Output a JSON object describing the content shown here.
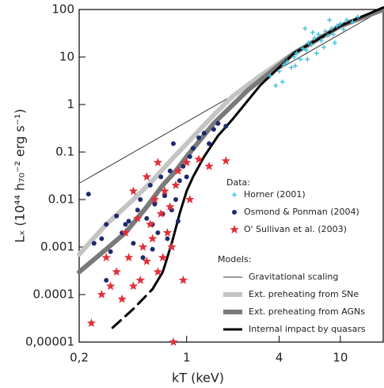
{
  "chart_data": {
    "type": "scatter",
    "ylabel": "Lₓ (10⁴⁴ h₇₀⁻² erg s⁻¹)",
    "xlabel": "kT (keV)",
    "xscale": "log",
    "yscale": "log",
    "xlim": [
      0.2,
      19
    ],
    "ylim": [
      1e-05,
      100
    ],
    "xticks": [
      {
        "value": 0.2,
        "label": "0,2"
      },
      1,
      4,
      10
    ],
    "yticks": [
      {
        "value": 1e-05,
        "label": "0,00001"
      },
      0.0001,
      0.001,
      0.01,
      0.1,
      1,
      10,
      100
    ],
    "data_legend_title": "Data:",
    "model_legend_title": "Models:",
    "series": [
      {
        "name": "Horner (2001)",
        "kind": "scatter",
        "marker": "cross",
        "color": "#4fc3dc",
        "x": [
          3.5,
          4,
          4.2,
          4.5,
          4.8,
          5,
          5.2,
          5.5,
          5.7,
          6,
          6.2,
          6.5,
          6.8,
          7,
          7.2,
          7.5,
          8,
          8.3,
          8.8,
          9,
          9.5,
          10,
          10.5,
          11,
          12,
          13,
          4.3,
          5.1,
          6.1,
          3.8,
          7.8,
          9.2,
          5.9,
          6.6,
          8.5
        ],
        "values": [
          4,
          5,
          3,
          8,
          6,
          10,
          12,
          9,
          15,
          14,
          20,
          18,
          25,
          12,
          30,
          22,
          35,
          28,
          40,
          30,
          45,
          50,
          38,
          60,
          55,
          70,
          7,
          6.5,
          9,
          2.5,
          16,
          20,
          40,
          33,
          60
        ]
      },
      {
        "name": "Osmond & Ponman (2004)",
        "kind": "scatter",
        "marker": "circle",
        "color": "#1f2a6b",
        "x": [
          0.23,
          0.25,
          0.28,
          0.3,
          0.32,
          0.35,
          0.38,
          0.4,
          0.42,
          0.45,
          0.48,
          0.5,
          0.52,
          0.55,
          0.58,
          0.6,
          0.62,
          0.65,
          0.68,
          0.7,
          0.72,
          0.75,
          0.78,
          0.8,
          0.82,
          0.85,
          0.9,
          0.95,
          1.0,
          1.05,
          1.1,
          1.2,
          1.3,
          1.4,
          1.5,
          1.6,
          1.8,
          0.3,
          0.6,
          0.88
        ],
        "values": [
          0.013,
          0.0012,
          0.0015,
          0.003,
          0.0008,
          0.0045,
          0.002,
          0.003,
          0.0035,
          0.0012,
          0.006,
          0.01,
          0.0006,
          0.004,
          0.02,
          0.003,
          0.008,
          0.002,
          0.03,
          0.005,
          0.012,
          0.0015,
          0.04,
          0.006,
          0.15,
          0.01,
          0.025,
          0.05,
          0.03,
          0.08,
          0.12,
          0.2,
          0.25,
          0.15,
          0.3,
          0.4,
          0.35,
          0.0002,
          0.0009,
          0.0035
        ]
      },
      {
        "name": "O' Sullivan et al. (2003)",
        "kind": "scatter",
        "marker": "star",
        "color": "#e0303a",
        "x": [
          0.24,
          0.28,
          0.3,
          0.32,
          0.35,
          0.38,
          0.4,
          0.42,
          0.45,
          0.48,
          0.5,
          0.52,
          0.55,
          0.58,
          0.6,
          0.62,
          0.65,
          0.68,
          0.7,
          0.72,
          0.75,
          0.78,
          0.8,
          0.82,
          0.85,
          0.88,
          0.95,
          1.0,
          1.05,
          1.2,
          1.4,
          1.8,
          0.55,
          0.45,
          0.65
        ],
        "values": [
          2.5e-05,
          0.0001,
          0.0006,
          0.00015,
          0.0003,
          8e-05,
          0.002,
          0.0006,
          0.00015,
          0.004,
          0.0002,
          0.001,
          0.0005,
          0.003,
          0.0015,
          0.01,
          0.0003,
          0.005,
          0.0006,
          0.015,
          0.002,
          0.007,
          0.001,
          1e-05,
          0.02,
          0.04,
          0.0002,
          0.06,
          0.01,
          0.07,
          0.05,
          0.065,
          0.03,
          0.015,
          0.06
        ]
      },
      {
        "name": "Gravitational scaling",
        "kind": "line",
        "color": "#333333",
        "width": 1,
        "x": [
          0.2,
          19
        ],
        "values": [
          0.022,
          100
        ]
      },
      {
        "name": "Ext. preheating from SNe",
        "kind": "line",
        "color": "#c4c4c4",
        "width": 6,
        "x": [
          0.2,
          0.3,
          0.45,
          0.6,
          0.8,
          1,
          1.5,
          2,
          3,
          5,
          10,
          19
        ],
        "values": [
          0.0007,
          0.003,
          0.01,
          0.025,
          0.07,
          0.15,
          0.6,
          1.5,
          4,
          12,
          45,
          100
        ]
      },
      {
        "name": "Ext. preheating from AGNs",
        "kind": "line",
        "color": "#7a7a7a",
        "width": 6,
        "x": [
          0.2,
          0.3,
          0.4,
          0.55,
          0.7,
          0.85,
          1,
          1.5,
          2.5,
          5,
          10,
          19
        ],
        "values": [
          0.0003,
          0.0009,
          0.002,
          0.007,
          0.02,
          0.04,
          0.08,
          0.4,
          2,
          12,
          45,
          100
        ]
      },
      {
        "name": "Internal impact by quasars",
        "kind": "line",
        "color": "#000000",
        "width": 3,
        "x": [
          0.6,
          0.7,
          0.8,
          0.9,
          1,
          1.1,
          1.3,
          1.6,
          2,
          3,
          5,
          10,
          19
        ],
        "values": [
          0.00013,
          0.0003,
          0.0012,
          0.005,
          0.015,
          0.03,
          0.08,
          0.22,
          0.5,
          2.5,
          12,
          45,
          110
        ]
      },
      {
        "kind": "line",
        "color": "#000000",
        "width": 3,
        "dash": true,
        "x": [
          0.33,
          0.45,
          0.6
        ],
        "values": [
          2e-05,
          5e-05,
          0.00013
        ]
      }
    ]
  }
}
